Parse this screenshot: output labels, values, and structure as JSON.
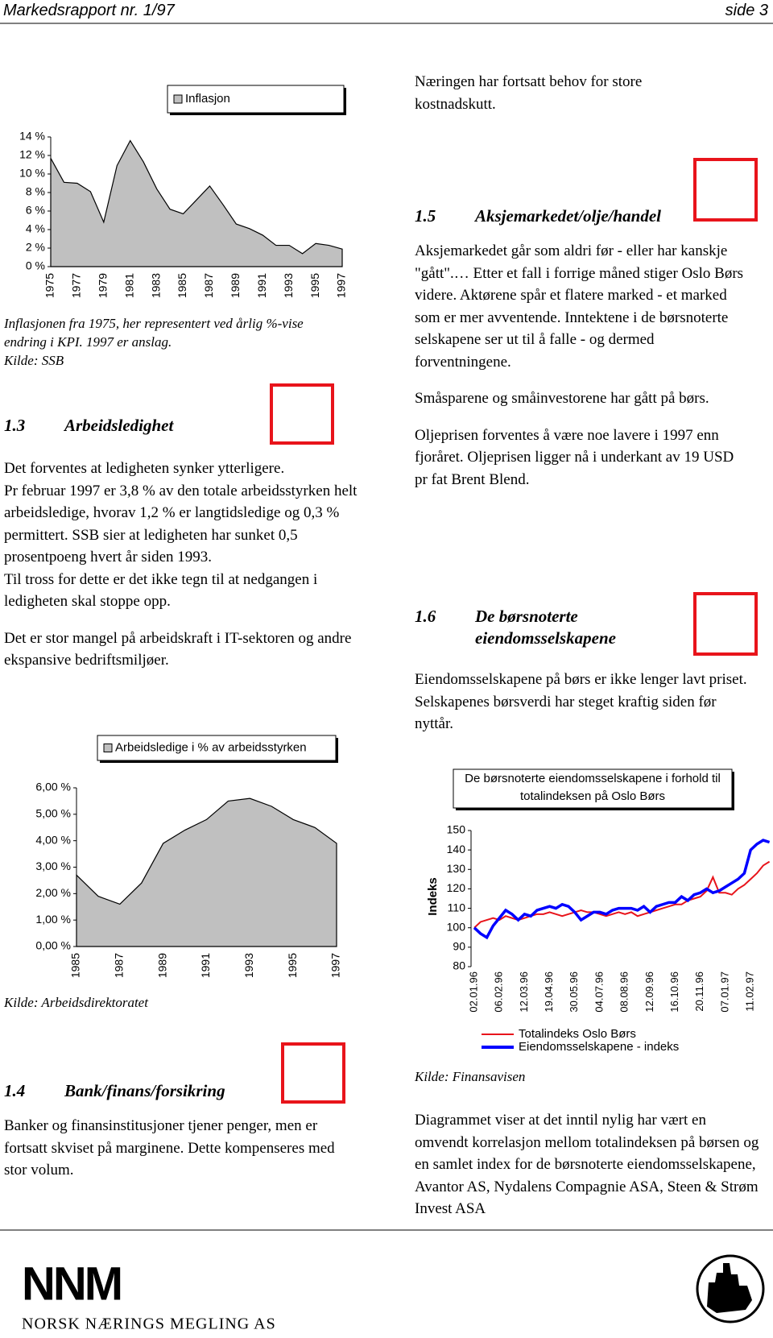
{
  "header": {
    "left": "Markedsrapport nr. 1/97",
    "right": "side 3"
  },
  "inflation_caption": "Inflasjonen fra 1975, her representert ved årlig %-vise endring i KPI. 1997 er anslag.",
  "inflation_source": "Kilde: SSB",
  "unemployment_source": "Kilde: Arbeidsdirektoratet",
  "stock_source": "Kilde: Finansavisen",
  "intro_text": "Næringen har fortsatt behov for store kostnadskutt.",
  "sections": [
    {
      "number": "1.3",
      "title": "Arbeidsledighet",
      "paragraphs": [
        "Det forventes at ledigheten synker ytterligere.",
        "Pr februar 1997 er 3,8 % av den totale arbeidsstyrken helt arbeidsledige, hvorav 1,2 % er langtidsledige og 0,3 % permittert. SSB sier at ledigheten har sunket 0,5 prosentpoeng hvert år siden 1993.",
        "Til tross for dette er det ikke tegn til at nedgangen i ledigheten skal stoppe opp.",
        "Det er stor mangel på arbeidskraft i IT-sektoren og andre ekspansive bedriftsmiljøer."
      ]
    },
    {
      "number": "1.4",
      "title": "Bank/finans/forsikring",
      "paragraphs": [
        "Banker og finansinstitusjoner tjener penger, men er fortsatt skviset på marginene. Dette kompenseres med stor volum."
      ]
    },
    {
      "number": "1.5",
      "title": "Aksjemarkedet/olje/handel",
      "paragraphs": [
        "Aksjemarkedet går som aldri før - eller har kanskje \"gått\".… Etter et fall i forrige måned stiger Oslo Børs videre. Aktørene spår et flatere marked - et marked som er mer avventende. Inntektene i de børsnoterte selskapene ser ut til å falle - og dermed forventningene.",
        "Småsparene og småinvestorene har gått på børs.",
        "Oljeprisen forventes å være noe lavere i 1997 enn fjoråret. Oljeprisen ligger nå i underkant av 19 USD pr fat Brent Blend."
      ]
    },
    {
      "number": "1.6",
      "title": "De børsnoterte eiendomsselskapene",
      "paragraphs": [
        "Eiendomsselskapene på børs er ikke lenger lavt priset. Selskapenes børsverdi har steget kraftig siden før nyttår."
      ]
    }
  ],
  "stock_note": "Diagrammet viser at det inntil nylig har vært en omvendt korrelasjon mellom totalindeksen på børsen og en samlet index for de børsnoterte eiendomsselskapene, Avantor AS, Nydalens Compagnie ASA, Steen & Strøm Invest ASA",
  "logo": {
    "initials": "NNM",
    "name": "Norsk Nærings Megling AS"
  },
  "chart_data": [
    {
      "type": "area",
      "categories": [
        "1975",
        null,
        "1977",
        null,
        "1979",
        null,
        "1981",
        null,
        "1983",
        null,
        "1985",
        null,
        "1987",
        null,
        "1989",
        null,
        "1991",
        null,
        "1993",
        null,
        "1995",
        null,
        "1997"
      ],
      "series": [
        {
          "name": "Inflasjon",
          "color": "#c0c0c0",
          "values": [
            11.7,
            9.1,
            9.0,
            8.1,
            4.8,
            10.9,
            13.6,
            11.3,
            8.4,
            6.2,
            5.7,
            7.2,
            8.7,
            6.7,
            4.6,
            4.1,
            3.4,
            2.3,
            2.3,
            1.4,
            2.5,
            2.3,
            1.9
          ]
        }
      ],
      "ylim": [
        0,
        14
      ],
      "yticks": [
        {
          "value": 0,
          "label": "0 %"
        },
        {
          "value": 2,
          "label": "2 %"
        },
        {
          "value": 4,
          "label": "4 %"
        },
        {
          "value": 6,
          "label": "6 %"
        },
        {
          "value": 8,
          "label": "8 %"
        },
        {
          "value": 10,
          "label": "10 %"
        },
        {
          "value": 12,
          "label": "12 %"
        },
        {
          "value": 14,
          "label": "14 %"
        }
      ]
    },
    {
      "type": "area",
      "categories": [
        "1985",
        null,
        "1987",
        null,
        "1989",
        null,
        "1991",
        null,
        "1993",
        null,
        "1995",
        null,
        "1997"
      ],
      "series": [
        {
          "name": "Arbeidsledige i % av arbeidsstyrken",
          "color": "#c0c0c0",
          "values": [
            2.7,
            1.9,
            1.6,
            2.4,
            3.9,
            4.4,
            4.8,
            5.5,
            5.6,
            5.3,
            4.8,
            4.5,
            3.9
          ]
        }
      ],
      "ylim": [
        0,
        6
      ],
      "yticks": [
        {
          "value": 0,
          "label": "0,00 %"
        },
        {
          "value": 1,
          "label": "1,00 %"
        },
        {
          "value": 2,
          "label": "2,00 %"
        },
        {
          "value": 3,
          "label": "3,00 %"
        },
        {
          "value": 4,
          "label": "4,00 %"
        },
        {
          "value": 5,
          "label": "5,00 %"
        },
        {
          "value": 6,
          "label": "6,00 %"
        }
      ]
    },
    {
      "type": "line",
      "title": "De børsnoterte eiendomsselskapene i forhold til totalindeksen på Oslo Børs",
      "y_label": "Indeks",
      "categories": [
        "02.01.96",
        null,
        null,
        null,
        "06.02.96",
        null,
        null,
        null,
        "12.03.96",
        null,
        null,
        null,
        "19.04.96",
        null,
        null,
        null,
        "30.05.96",
        null,
        null,
        null,
        "04.07.96",
        null,
        null,
        null,
        "08.08.96",
        null,
        null,
        null,
        "12.09.96",
        null,
        null,
        null,
        "16.10.96",
        null,
        null,
        null,
        "20.11.96",
        null,
        null,
        null,
        "07.01.97",
        null,
        null,
        null,
        "11.02.97",
        null,
        null,
        null
      ],
      "series": [
        {
          "name": "Totalindeks Oslo Børs",
          "color": "#e8141b",
          "values": [
            100,
            103,
            104,
            105,
            104,
            106,
            105,
            104,
            105,
            106,
            107,
            107,
            108,
            107,
            106,
            107,
            108,
            109,
            108,
            108,
            107,
            106,
            107,
            108,
            107,
            108,
            106,
            107,
            108,
            109,
            110,
            111,
            112,
            112,
            114,
            115,
            116,
            119,
            126,
            118,
            118,
            117,
            120,
            122,
            125,
            128,
            132,
            134
          ]
        },
        {
          "name": "Eiendomsselskapene - indeks",
          "color": "#0000ff",
          "values": [
            100,
            97,
            95,
            101,
            105,
            109,
            107,
            104,
            107,
            106,
            109,
            110,
            111,
            110,
            112,
            111,
            108,
            104,
            106,
            108,
            108,
            107,
            109,
            110,
            110,
            110,
            109,
            111,
            108,
            111,
            112,
            113,
            113,
            116,
            114,
            117,
            118,
            120,
            118,
            119,
            121,
            123,
            125,
            128,
            140,
            143,
            145,
            144
          ]
        }
      ],
      "ylim": [
        80,
        150
      ],
      "yticks": [
        80,
        90,
        100,
        110,
        120,
        130,
        140,
        150
      ]
    }
  ]
}
